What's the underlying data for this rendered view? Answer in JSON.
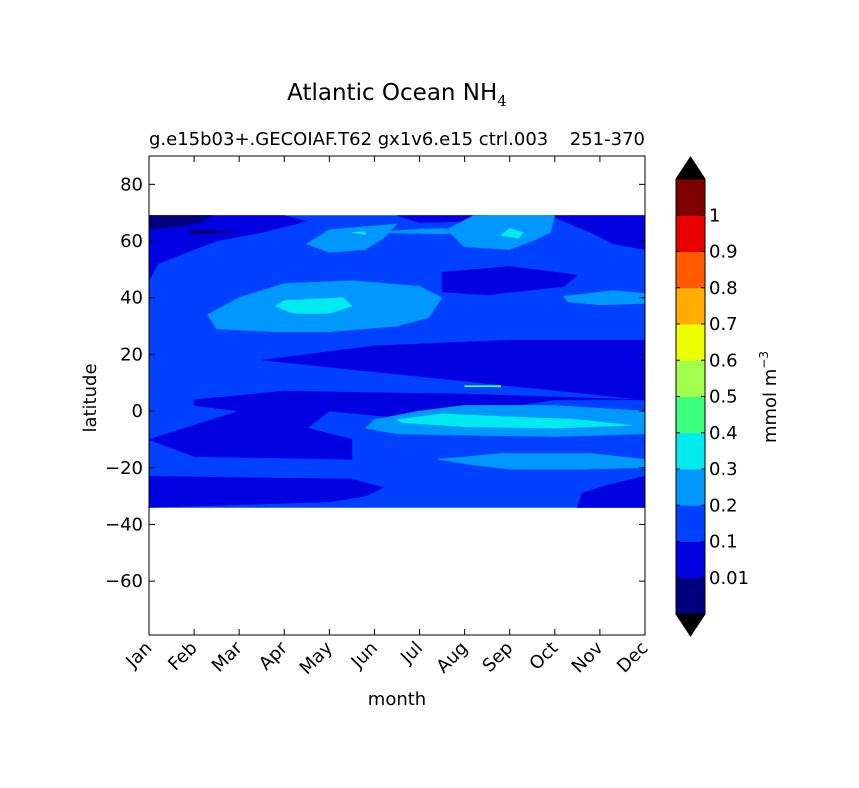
{
  "chart_data": {
    "type": "heatmap",
    "title": "Atlantic Ocean NH",
    "title_subscript": "4",
    "subtitle_left": "g.e15b03+.GECOIAF.T62 gx1v6.e15 ctrl.003",
    "subtitle_right": "251-370",
    "xlabel": "month",
    "ylabel": "latitude",
    "x_ticks": [
      "Jan",
      "Feb",
      "Mar",
      "Apr",
      "May",
      "Jun",
      "Jul",
      "Aug",
      "Sep",
      "Oct",
      "Nov",
      "Dec"
    ],
    "y_ticks": [
      -60,
      -40,
      -20,
      0,
      20,
      40,
      60,
      80
    ],
    "y_tick_labels": [
      "−60",
      "−40",
      "−20",
      "0",
      "20",
      "40",
      "60",
      "80"
    ],
    "xlim": [
      1,
      12
    ],
    "ylim": [
      -79,
      90
    ],
    "data_lat_range": [
      -34,
      69
    ],
    "grid": false,
    "colorbar": {
      "label": "mmol m",
      "label_superscript": "−3",
      "levels": [
        0.01,
        0.1,
        0.2,
        0.3,
        0.4,
        0.5,
        0.6,
        0.7,
        0.8,
        0.9,
        1
      ],
      "tick_labels": [
        "0.01",
        "0.1",
        "0.2",
        "0.3",
        "0.4",
        "0.5",
        "0.6",
        "0.7",
        "0.8",
        "0.9",
        "1"
      ],
      "colors": [
        "#00007f",
        "#0000e0",
        "#0040ff",
        "#0098ff",
        "#00eaef",
        "#3cff7d",
        "#a3ff4e",
        "#ebff00",
        "#ffae00",
        "#ff5a00",
        "#e90000",
        "#7f0000"
      ],
      "extend": "both",
      "under_color": "#000000",
      "over_color": "#000000"
    },
    "regions": [
      {
        "level": 2,
        "points": [
          [
            1,
            69
          ],
          [
            12,
            69
          ],
          [
            12,
            -34
          ],
          [
            1,
            -34
          ]
        ]
      },
      {
        "level": 1,
        "points": [
          [
            1,
            69
          ],
          [
            4.0,
            69
          ],
          [
            4.5,
            67
          ],
          [
            3.5,
            63
          ],
          [
            2.5,
            60
          ],
          [
            2.0,
            57
          ],
          [
            1.2,
            52
          ],
          [
            1,
            46
          ]
        ]
      },
      {
        "level": 0,
        "points": [
          [
            1,
            69
          ],
          [
            2.4,
            69
          ],
          [
            2.2,
            67
          ],
          [
            1.6,
            65
          ],
          [
            1,
            64
          ]
        ]
      },
      {
        "level": 0,
        "points": [
          [
            1.9,
            64
          ],
          [
            3.1,
            63
          ],
          [
            1.9,
            62.4
          ]
        ]
      },
      {
        "level": 1,
        "points": [
          [
            6.5,
            69
          ],
          [
            8.5,
            69
          ],
          [
            8.2,
            67
          ],
          [
            7.0,
            66.5
          ]
        ]
      },
      {
        "level": 1,
        "points": [
          [
            9.9,
            69
          ],
          [
            12,
            69
          ],
          [
            12,
            57
          ],
          [
            11.3,
            59
          ],
          [
            10.8,
            63
          ],
          [
            10.2,
            67
          ]
        ]
      },
      {
        "level": 3,
        "points": [
          [
            5.0,
            64
          ],
          [
            6.5,
            66
          ],
          [
            6.2,
            61
          ],
          [
            5.8,
            57
          ],
          [
            5.0,
            56
          ],
          [
            4.5,
            59
          ]
        ]
      },
      {
        "level": 3,
        "points": [
          [
            6.0,
            63
          ],
          [
            7.5,
            62.5
          ],
          [
            8.0,
            63.2
          ],
          [
            7.5,
            64.4
          ],
          [
            6.8,
            64
          ]
        ]
      },
      {
        "level": 3,
        "points": [
          [
            8.2,
            69
          ],
          [
            10.0,
            69
          ],
          [
            9.9,
            63
          ],
          [
            9.5,
            60
          ],
          [
            9.0,
            57
          ],
          [
            8.0,
            58
          ],
          [
            7.8,
            61
          ],
          [
            7.6,
            64
          ]
        ]
      },
      {
        "level": 4,
        "points": [
          [
            8.8,
            62
          ],
          [
            9.2,
            61
          ],
          [
            9.3,
            63
          ],
          [
            9.0,
            64.5
          ]
        ]
      },
      {
        "level": 4,
        "points": [
          [
            5.5,
            63
          ],
          [
            5.8,
            62.3
          ],
          [
            5.8,
            63.3
          ]
        ]
      },
      {
        "level": 1,
        "points": [
          [
            7.5,
            49
          ],
          [
            9.0,
            51
          ],
          [
            10.5,
            48
          ],
          [
            10.2,
            44
          ],
          [
            8.5,
            41
          ],
          [
            7.5,
            42
          ]
        ]
      },
      {
        "level": 3,
        "points": [
          [
            4.0,
            45
          ],
          [
            5.5,
            46
          ],
          [
            7.0,
            44
          ],
          [
            7.5,
            40
          ],
          [
            7.2,
            33
          ],
          [
            6.5,
            30
          ],
          [
            5.0,
            28
          ],
          [
            3.8,
            28
          ],
          [
            2.5,
            29
          ],
          [
            2.3,
            34
          ],
          [
            3.0,
            40
          ]
        ]
      },
      {
        "level": 4,
        "points": [
          [
            4.0,
            39
          ],
          [
            5.3,
            40
          ],
          [
            5.5,
            37
          ],
          [
            5.0,
            34.5
          ],
          [
            4.2,
            34.5
          ],
          [
            3.8,
            37
          ]
        ]
      },
      {
        "level": 3,
        "points": [
          [
            10.2,
            40.5
          ],
          [
            11.3,
            42.5
          ],
          [
            12,
            41.5
          ],
          [
            12,
            38
          ],
          [
            11.0,
            37.5
          ],
          [
            10.3,
            38.5
          ]
        ]
      },
      {
        "level": 1,
        "points": [
          [
            3.5,
            18
          ],
          [
            6.0,
            23
          ],
          [
            9.0,
            25
          ],
          [
            12,
            25
          ],
          [
            12,
            4
          ],
          [
            8.0,
            6
          ],
          [
            4.0,
            7
          ],
          [
            2.0,
            4
          ],
          [
            2.0,
            2
          ],
          [
            3.0,
            0
          ],
          [
            1,
            -10
          ],
          [
            2.0,
            -16
          ],
          [
            5.5,
            -17
          ],
          [
            5.5,
            -10
          ],
          [
            4.5,
            -6
          ],
          [
            5.0,
            0
          ],
          [
            7.0,
            -3
          ],
          [
            10.0,
            4
          ],
          [
            12,
            4
          ]
        ]
      },
      {
        "level": 1,
        "points": [
          [
            1,
            -23
          ],
          [
            5.5,
            -24
          ],
          [
            6.2,
            -27
          ],
          [
            5.8,
            -30
          ],
          [
            5.0,
            -32
          ],
          [
            1,
            -34
          ]
        ]
      },
      {
        "level": 1,
        "points": [
          [
            10.5,
            -34
          ],
          [
            12,
            -34
          ],
          [
            12,
            -23
          ],
          [
            11.2,
            -26
          ],
          [
            10.6,
            -29
          ]
        ]
      },
      {
        "level": 3,
        "points": [
          [
            6.0,
            -3
          ],
          [
            7.0,
            0
          ],
          [
            8.0,
            2
          ],
          [
            10.0,
            2
          ],
          [
            12,
            0
          ],
          [
            12,
            -8
          ],
          [
            10.0,
            -9
          ],
          [
            8.0,
            -8.5
          ],
          [
            6.5,
            -8
          ],
          [
            5.8,
            -6
          ]
        ]
      },
      {
        "level": 4,
        "points": [
          [
            6.5,
            -3
          ],
          [
            7.5,
            -1
          ],
          [
            9.0,
            -2
          ],
          [
            10.5,
            -3
          ],
          [
            11.7,
            -5
          ],
          [
            10.0,
            -6
          ],
          [
            8.0,
            -5.5
          ],
          [
            6.6,
            -4
          ]
        ]
      },
      {
        "level": 3,
        "points": [
          [
            7.4,
            -17
          ],
          [
            8.8,
            -15
          ],
          [
            10.8,
            -15
          ],
          [
            12,
            -17
          ],
          [
            12,
            -20
          ],
          [
            10.6,
            -20.5
          ],
          [
            9.0,
            -20.5
          ],
          [
            8.2,
            -19
          ]
        ]
      },
      {
        "level": 5,
        "points": [
          [
            8.0,
            9
          ],
          [
            8.8,
            9
          ],
          [
            8.8,
            8.5
          ],
          [
            8.0,
            8.6
          ]
        ]
      }
    ]
  }
}
